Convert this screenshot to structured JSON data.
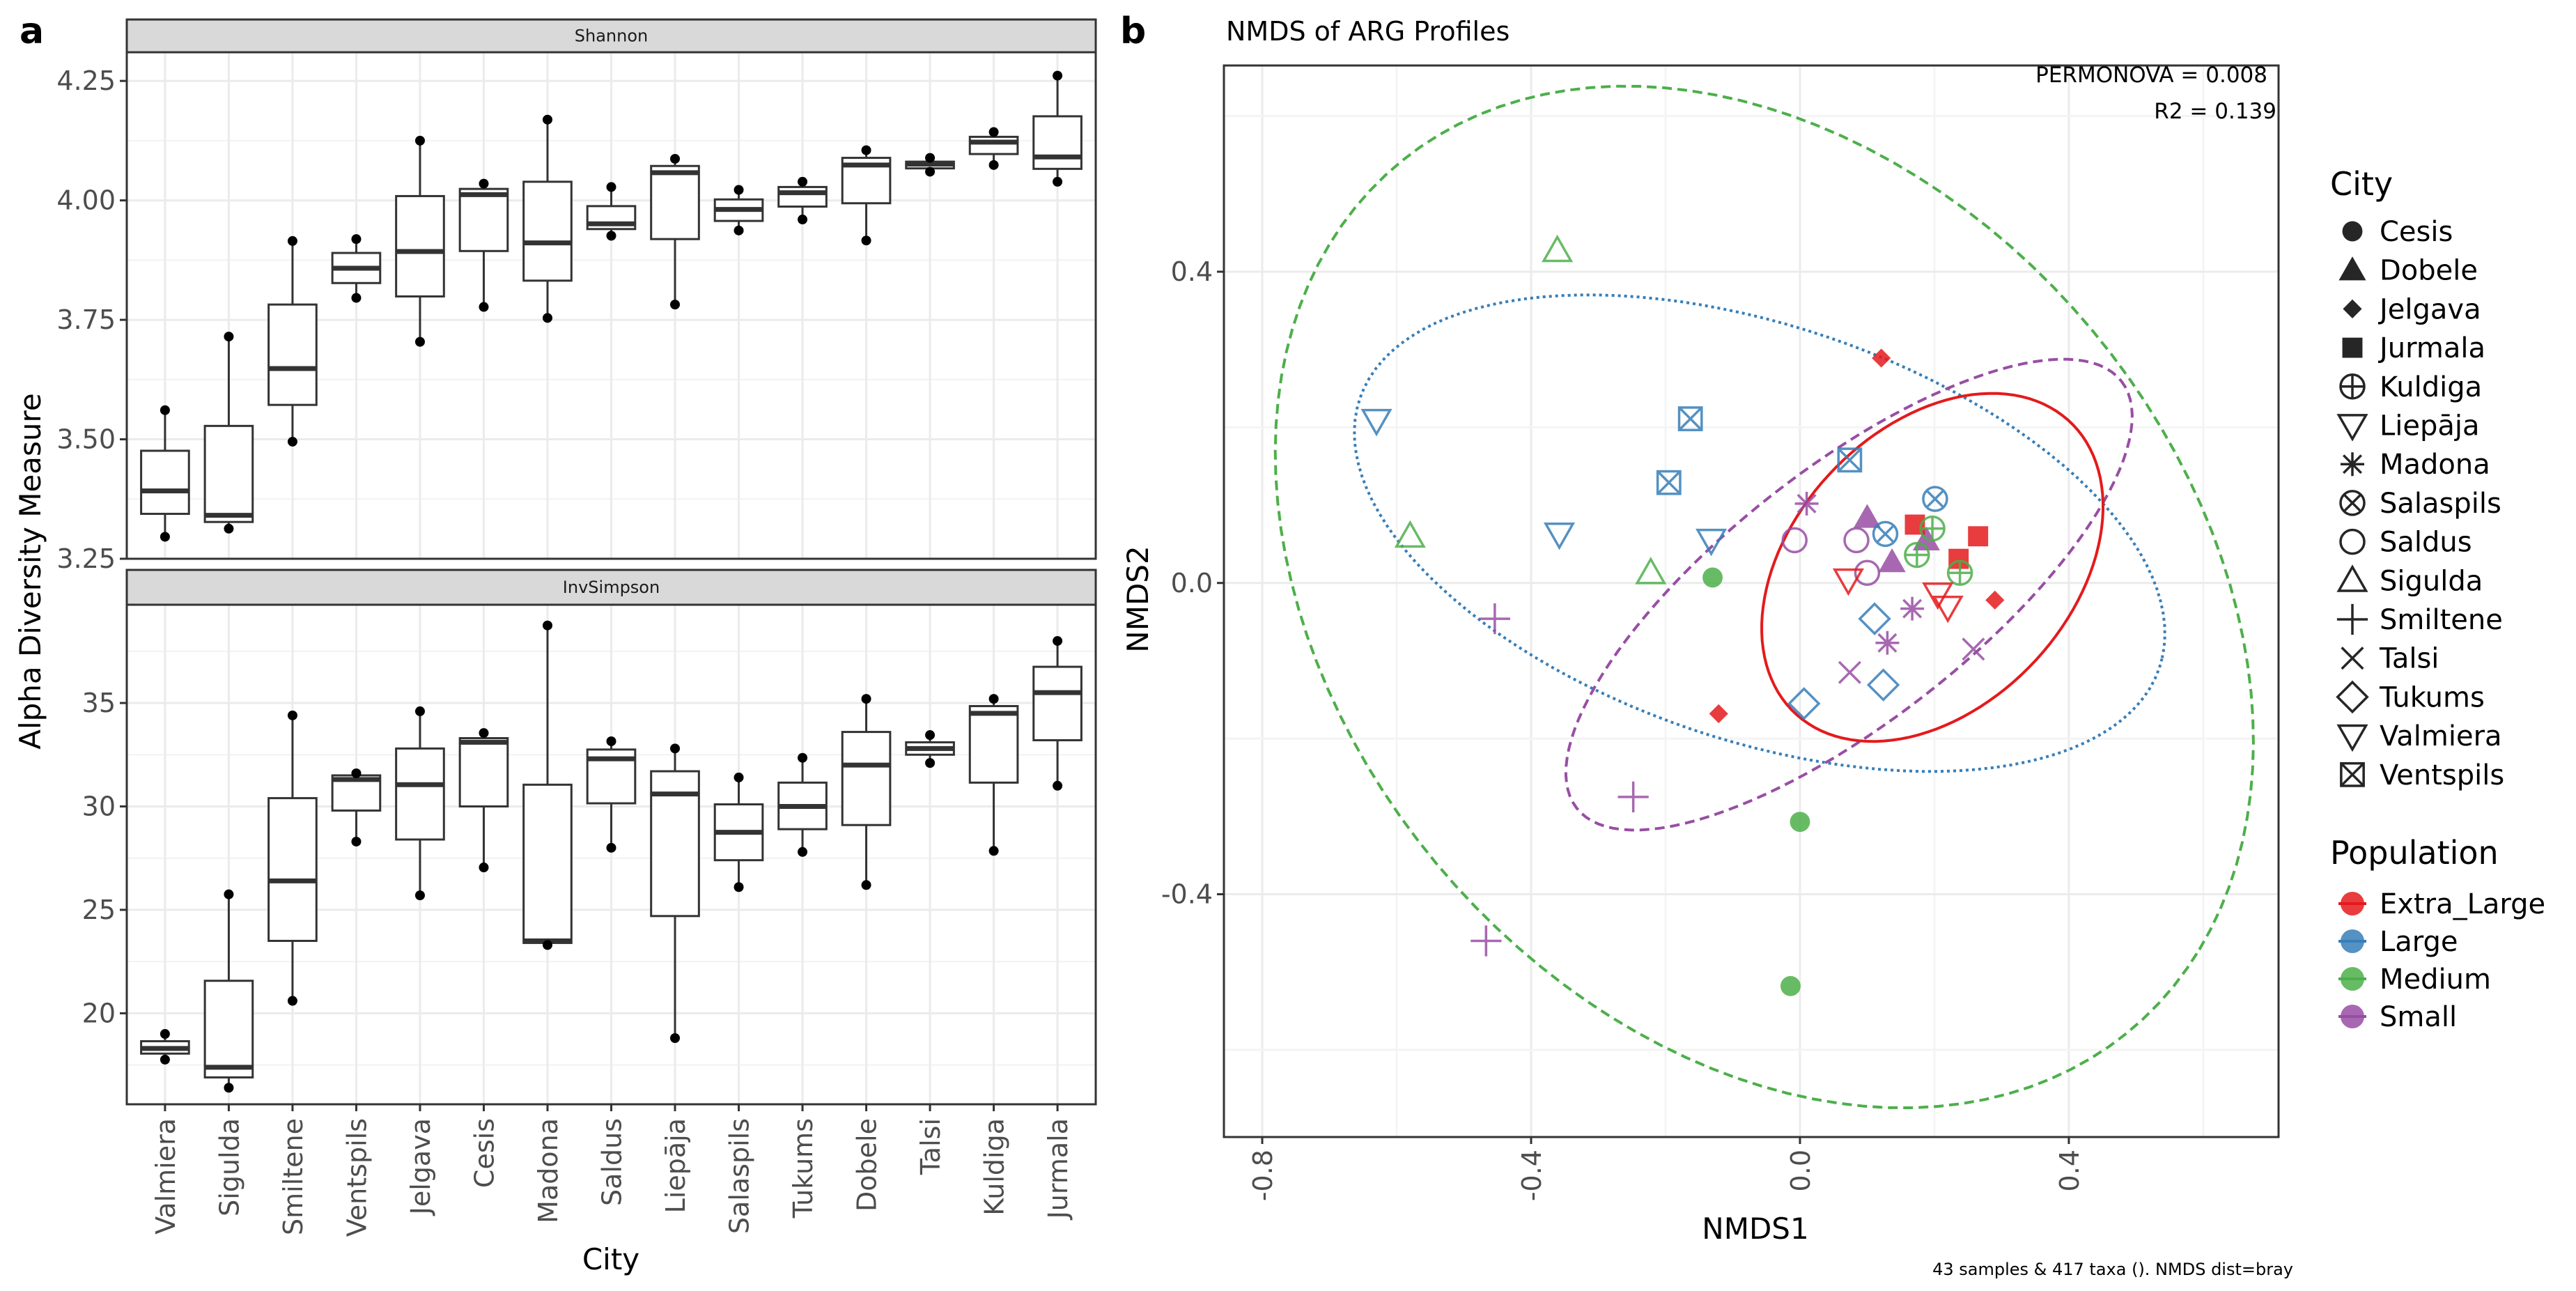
{
  "panel_labels": {
    "a": "a",
    "b": "b"
  },
  "chart_data": [
    {
      "type": "boxplot",
      "panel": "a",
      "xlabel": "City",
      "ylabel": "Alpha Diversity Measure",
      "categories": [
        "Valmiera",
        "Sigulda",
        "Smiltene",
        "Ventspils",
        "Jelgava",
        "Cesis",
        "Madona",
        "Saldus",
        "Liepāja",
        "Salaspils",
        "Tukums",
        "Dobele",
        "Talsi",
        "Kuldiga",
        "Jurmala"
      ],
      "facets": [
        {
          "title": "Shannon",
          "ylim": [
            3.25,
            4.31
          ],
          "yticks": [
            3.25,
            3.5,
            3.75,
            4.0,
            4.25
          ],
          "ytick_labels": [
            "3.25",
            "3.50",
            "3.75",
            "4.00",
            "4.25"
          ],
          "boxes": [
            {
              "min": 3.296,
              "q1": 3.344,
              "median": 3.392,
              "q3": 3.476,
              "max": 3.561
            },
            {
              "min": 3.313,
              "q1": 3.327,
              "median": 3.341,
              "q3": 3.528,
              "max": 3.715
            },
            {
              "min": 3.495,
              "q1": 3.572,
              "median": 3.648,
              "q3": 3.782,
              "max": 3.915
            },
            {
              "min": 3.796,
              "q1": 3.827,
              "median": 3.858,
              "q3": 3.89,
              "max": 3.919
            },
            {
              "min": 3.704,
              "q1": 3.799,
              "median": 3.893,
              "q3": 4.009,
              "max": 4.125
            },
            {
              "min": 3.777,
              "q1": 3.894,
              "median": 4.012,
              "q3": 4.024,
              "max": 4.035
            },
            {
              "min": 3.754,
              "q1": 3.832,
              "median": 3.911,
              "q3": 4.039,
              "max": 4.169
            },
            {
              "min": 3.926,
              "q1": 3.94,
              "median": 3.951,
              "q3": 3.988,
              "max": 4.028
            },
            {
              "min": 3.782,
              "q1": 3.919,
              "median": 4.058,
              "q3": 4.072,
              "max": 4.087
            },
            {
              "min": 3.937,
              "q1": 3.957,
              "median": 3.981,
              "q3": 4.002,
              "max": 4.022
            },
            {
              "min": 3.96,
              "q1": 3.987,
              "median": 4.016,
              "q3": 4.028,
              "max": 4.039
            },
            {
              "min": 3.916,
              "q1": 3.994,
              "median": 4.074,
              "q3": 4.089,
              "max": 4.105
            },
            {
              "min": 4.06,
              "q1": 4.067,
              "median": 4.076,
              "q3": 4.081,
              "max": 4.089
            },
            {
              "min": 4.074,
              "q1": 4.097,
              "median": 4.122,
              "q3": 4.133,
              "max": 4.143
            },
            {
              "min": 4.039,
              "q1": 4.066,
              "median": 4.091,
              "q3": 4.176,
              "max": 4.261
            }
          ]
        },
        {
          "title": "InvSimpson",
          "ylim": [
            15.6,
            39.75
          ],
          "yticks": [
            20,
            25,
            30,
            35
          ],
          "ytick_labels": [
            "20",
            "25",
            "30",
            "35"
          ],
          "boxes": [
            {
              "min": 17.76,
              "q1": 18.05,
              "median": 18.3,
              "q3": 18.65,
              "max": 19.0
            },
            {
              "min": 16.4,
              "q1": 16.9,
              "median": 17.39,
              "q3": 21.57,
              "max": 25.75
            },
            {
              "min": 20.6,
              "q1": 23.5,
              "median": 26.4,
              "q3": 30.4,
              "max": 34.4
            },
            {
              "min": 28.3,
              "q1": 29.8,
              "median": 31.3,
              "q3": 31.5,
              "max": 31.6
            },
            {
              "min": 25.7,
              "q1": 28.4,
              "median": 31.05,
              "q3": 32.8,
              "max": 34.6
            },
            {
              "min": 27.05,
              "q1": 30.0,
              "median": 33.1,
              "q3": 33.3,
              "max": 33.55
            },
            {
              "min": 23.3,
              "q1": 23.4,
              "median": 23.5,
              "q3": 31.05,
              "max": 38.75
            },
            {
              "min": 28.0,
              "q1": 30.15,
              "median": 32.3,
              "q3": 32.75,
              "max": 33.15
            },
            {
              "min": 18.8,
              "q1": 24.7,
              "median": 30.6,
              "q3": 31.7,
              "max": 32.8
            },
            {
              "min": 26.1,
              "q1": 27.4,
              "median": 28.75,
              "q3": 30.1,
              "max": 31.4
            },
            {
              "min": 27.8,
              "q1": 28.9,
              "median": 30.0,
              "q3": 31.15,
              "max": 32.35
            },
            {
              "min": 26.2,
              "q1": 29.1,
              "median": 32.0,
              "q3": 33.6,
              "max": 35.2
            },
            {
              "min": 32.1,
              "q1": 32.5,
              "median": 32.8,
              "q3": 33.1,
              "max": 33.45
            },
            {
              "min": 27.85,
              "q1": 31.15,
              "median": 34.5,
              "q3": 34.85,
              "max": 35.2
            },
            {
              "min": 31.0,
              "q1": 33.2,
              "median": 35.5,
              "q3": 36.75,
              "max": 38.0
            }
          ]
        }
      ]
    },
    {
      "type": "scatter",
      "panel": "b",
      "title": "NMDS of ARG Profiles",
      "xlabel": "NMDS1",
      "ylabel": "NMDS2",
      "xlim": [
        -0.857,
        0.712
      ],
      "ylim": [
        -0.712,
        0.665
      ],
      "xticks": [
        -0.8,
        -0.4,
        0.0,
        0.4
      ],
      "xtick_labels": [
        "-0.8",
        "-0.4",
        "0.0",
        "0.4"
      ],
      "yticks": [
        -0.4,
        0.0,
        0.4
      ],
      "ytick_labels": [
        "-0.4",
        "0.0",
        "0.4"
      ],
      "annotations": [
        "PERMONOVA = 0.008",
        "R2 = 0.139"
      ],
      "caption": "43 samples & 417 taxa (). NMDS dist=bray",
      "legend_city_title": "City",
      "legend_population_title": "Population",
      "cities": [
        {
          "name": "Cesis",
          "shape": "filled-circle"
        },
        {
          "name": "Dobele",
          "shape": "filled-triangle"
        },
        {
          "name": "Jelgava",
          "shape": "filled-diamond"
        },
        {
          "name": "Jurmala",
          "shape": "filled-square"
        },
        {
          "name": "Kuldiga",
          "shape": "circle-plus"
        },
        {
          "name": "Liepāja",
          "shape": "down-triangle"
        },
        {
          "name": "Madona",
          "shape": "asterisk"
        },
        {
          "name": "Salaspils",
          "shape": "circle-x"
        },
        {
          "name": "Saldus",
          "shape": "open-circle"
        },
        {
          "name": "Sigulda",
          "shape": "up-triangle"
        },
        {
          "name": "Smiltene",
          "shape": "plus"
        },
        {
          "name": "Talsi",
          "shape": "cross"
        },
        {
          "name": "Tukums",
          "shape": "open-diamond"
        },
        {
          "name": "Valmiera",
          "shape": "down-triangle"
        },
        {
          "name": "Ventspils",
          "shape": "square-x"
        }
      ],
      "populations": [
        {
          "name": "Extra_Large",
          "color": "#E41A1C"
        },
        {
          "name": "Large",
          "color": "#377EB8"
        },
        {
          "name": "Medium",
          "color": "#4DAF4A"
        },
        {
          "name": "Small",
          "color": "#984EA3"
        }
      ],
      "ellipses": [
        {
          "population": "Medium",
          "cx": -0.053,
          "cy": -0.018,
          "a": 0.79,
          "b": 0.58,
          "angle": -35,
          "style": "dashed"
        },
        {
          "population": "Large",
          "cx": -0.06,
          "cy": 0.064,
          "a": 0.62,
          "b": 0.27,
          "angle": -15,
          "style": "dotted"
        },
        {
          "population": "Small",
          "cx": 0.073,
          "cy": -0.015,
          "a": 0.49,
          "b": 0.17,
          "angle": 33,
          "style": "dashed"
        },
        {
          "population": "Extra_Large",
          "cx": 0.197,
          "cy": 0.02,
          "a": 0.28,
          "b": 0.19,
          "angle": 35,
          "style": "solid"
        }
      ],
      "points": [
        {
          "city": "Dobele",
          "population": "Small",
          "x": 0.1,
          "y": 0.084
        },
        {
          "city": "Dobele",
          "population": "Small",
          "x": 0.137,
          "y": 0.027
        },
        {
          "city": "Dobele",
          "population": "Small",
          "x": 0.188,
          "y": 0.055
        },
        {
          "city": "Jurmala",
          "population": "Extra_Large",
          "x": 0.171,
          "y": 0.075
        },
        {
          "city": "Jurmala",
          "population": "Extra_Large",
          "x": 0.265,
          "y": 0.06
        },
        {
          "city": "Jurmala",
          "population": "Extra_Large",
          "x": 0.236,
          "y": 0.031
        },
        {
          "city": "Kuldiga",
          "population": "Medium",
          "x": 0.197,
          "y": 0.07
        },
        {
          "city": "Kuldiga",
          "population": "Medium",
          "x": 0.174,
          "y": 0.036
        },
        {
          "city": "Kuldiga",
          "population": "Medium",
          "x": 0.238,
          "y": 0.013
        },
        {
          "city": "Salaspils",
          "population": "Large",
          "x": 0.201,
          "y": 0.108
        },
        {
          "city": "Salaspils",
          "population": "Large",
          "x": 0.127,
          "y": 0.063
        },
        {
          "city": "Ventspils",
          "population": "Large",
          "x": 0.074,
          "y": 0.158
        },
        {
          "city": "Ventspils",
          "population": "Large",
          "x": -0.163,
          "y": 0.211
        },
        {
          "city": "Ventspils",
          "population": "Large",
          "x": -0.195,
          "y": 0.129
        },
        {
          "city": "Madona",
          "population": "Small",
          "x": 0.01,
          "y": 0.102
        },
        {
          "city": "Madona",
          "population": "Small",
          "x": 0.167,
          "y": -0.033
        },
        {
          "city": "Madona",
          "population": "Small",
          "x": 0.13,
          "y": -0.077
        },
        {
          "city": "Saldus",
          "population": "Small",
          "x": -0.008,
          "y": 0.055
        },
        {
          "city": "Saldus",
          "population": "Small",
          "x": 0.084,
          "y": 0.055
        },
        {
          "city": "Saldus",
          "population": "Small",
          "x": 0.1,
          "y": 0.013
        },
        {
          "city": "Liepāja",
          "population": "Extra_Large",
          "x": 0.072,
          "y": 0.004
        },
        {
          "city": "Liepāja",
          "population": "Extra_Large",
          "x": 0.205,
          "y": -0.014
        },
        {
          "city": "Liepāja",
          "population": "Extra_Large",
          "x": 0.22,
          "y": -0.031
        },
        {
          "city": "Talsi",
          "population": "Small",
          "x": 0.258,
          "y": -0.085
        },
        {
          "city": "Talsi",
          "population": "Small",
          "x": 0.074,
          "y": -0.115
        },
        {
          "city": "Tukums",
          "population": "Large",
          "x": 0.111,
          "y": -0.046
        },
        {
          "city": "Tukums",
          "population": "Large",
          "x": 0.124,
          "y": -0.131
        },
        {
          "city": "Tukums",
          "population": "Large",
          "x": 0.006,
          "y": -0.155
        },
        {
          "city": "Jelgava",
          "population": "Extra_Large",
          "x": 0.29,
          "y": -0.022
        },
        {
          "city": "Jelgava",
          "population": "Extra_Large",
          "x": 0.121,
          "y": 0.289
        },
        {
          "city": "Jelgava",
          "population": "Extra_Large",
          "x": -0.121,
          "y": -0.168
        },
        {
          "city": "Cesis",
          "population": "Medium",
          "x": -0.13,
          "y": 0.007
        },
        {
          "city": "Cesis",
          "population": "Medium",
          "x": 0.0,
          "y": -0.307
        },
        {
          "city": "Cesis",
          "population": "Medium",
          "x": -0.014,
          "y": -0.518
        },
        {
          "city": "Sigulda",
          "population": "Medium",
          "x": -0.361,
          "y": 0.427
        },
        {
          "city": "Sigulda",
          "population": "Medium",
          "x": -0.58,
          "y": 0.06
        },
        {
          "city": "Sigulda",
          "population": "Medium",
          "x": -0.222,
          "y": 0.013
        },
        {
          "city": "Valmiera",
          "population": "Large",
          "x": -0.63,
          "y": 0.209
        },
        {
          "city": "Valmiera",
          "population": "Large",
          "x": -0.358,
          "y": 0.063
        },
        {
          "city": "Valmiera",
          "population": "Large",
          "x": -0.132,
          "y": 0.055
        },
        {
          "city": "Smiltene",
          "population": "Small",
          "x": -0.454,
          "y": -0.046
        },
        {
          "city": "Smiltene",
          "population": "Small",
          "x": -0.248,
          "y": -0.275
        },
        {
          "city": "Smiltene",
          "population": "Small",
          "x": -0.467,
          "y": -0.46
        }
      ]
    }
  ]
}
